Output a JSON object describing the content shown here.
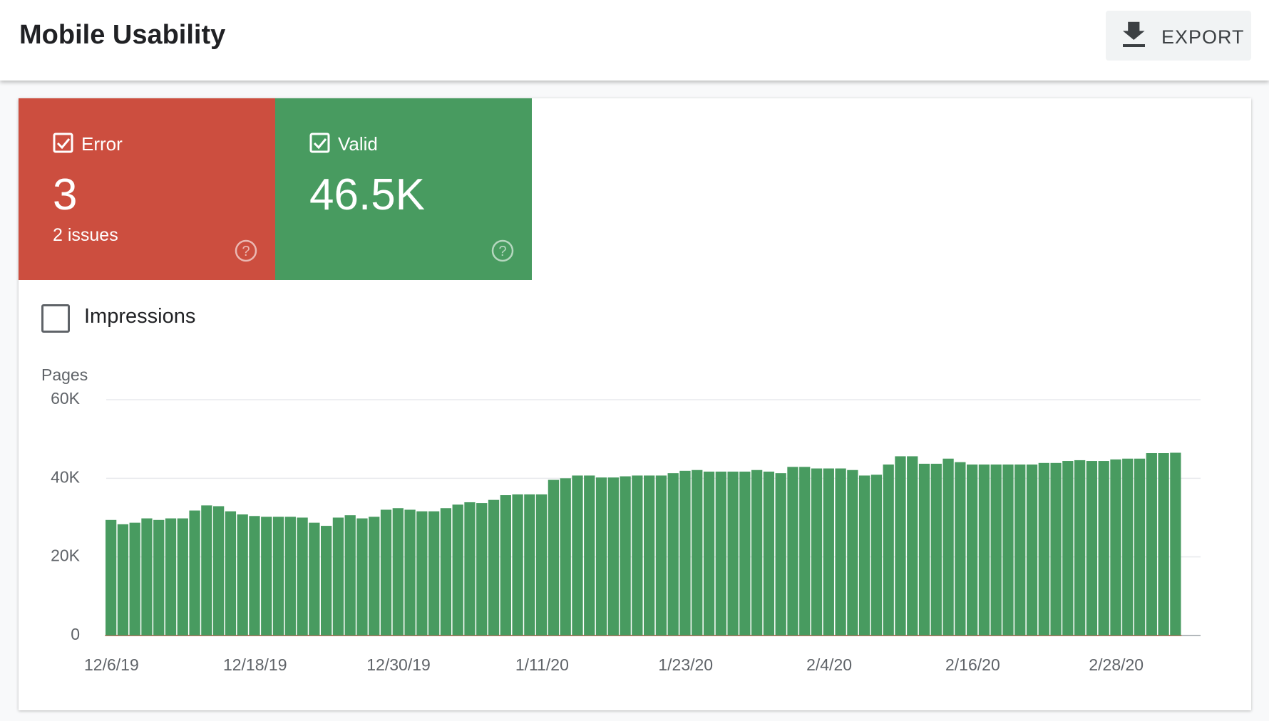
{
  "header": {
    "title": "Mobile Usability",
    "export_button": "EXPORT"
  },
  "tiles": [
    {
      "value": 3,
      "detail": "2 issues"
    },
    {
      "value": "46.5K"
    }
  ],
  "impressions_toggle": "Impressions",
  "chart_data": {
    "type": "bar",
    "stacked": true,
    "y_label": "Pages",
    "categories": [
      "12/6/19",
      null,
      null,
      null,
      null,
      null,
      null,
      null,
      null,
      null,
      null,
      null,
      "12/18/19",
      null,
      null,
      null,
      null,
      null,
      null,
      null,
      null,
      null,
      null,
      null,
      "12/30/19",
      null,
      null,
      null,
      null,
      null,
      null,
      null,
      null,
      null,
      null,
      null,
      "1/11/20",
      null,
      null,
      null,
      null,
      null,
      null,
      null,
      null,
      null,
      null,
      null,
      "1/23/20",
      null,
      null,
      null,
      null,
      null,
      null,
      null,
      null,
      null,
      null,
      null,
      "2/4/20",
      null,
      null,
      null,
      null,
      null,
      null,
      null,
      null,
      null,
      null,
      null,
      "2/16/20",
      null,
      null,
      null,
      null,
      null,
      null,
      null,
      null,
      null,
      null,
      null,
      "2/28/20",
      null,
      null,
      null,
      null,
      null
    ],
    "series": [
      {
        "name": "Error",
        "color": "#cc4e3f",
        "values": [
          3,
          3,
          3,
          3,
          3,
          3,
          3,
          3,
          3,
          3,
          3,
          3,
          3,
          3,
          3,
          3,
          3,
          3,
          3,
          3,
          3,
          3,
          3,
          3,
          3,
          3,
          3,
          3,
          3,
          3,
          3,
          3,
          3,
          3,
          3,
          3,
          3,
          3,
          3,
          3,
          3,
          3,
          3,
          3,
          3,
          3,
          3,
          3,
          3,
          3,
          3,
          3,
          3,
          3,
          3,
          3,
          3,
          3,
          3,
          3,
          3,
          3,
          3,
          3,
          3,
          3,
          3,
          3,
          3,
          3,
          3,
          3,
          3,
          3,
          3,
          3,
          3,
          3,
          3,
          3,
          3,
          3,
          3,
          3,
          3,
          3,
          3,
          3,
          3,
          3
        ]
      },
      {
        "name": "Valid",
        "color": "#489b60",
        "values": [
          29400,
          28300,
          28700,
          29800,
          29400,
          29800,
          29800,
          31800,
          33100,
          32900,
          31600,
          30800,
          30400,
          30200,
          30200,
          30200,
          30000,
          28700,
          27900,
          30000,
          30600,
          29800,
          30200,
          32000,
          32400,
          32000,
          31600,
          31600,
          32400,
          33300,
          33900,
          33700,
          34500,
          35700,
          35900,
          35900,
          35900,
          39600,
          40000,
          40700,
          40700,
          40200,
          40200,
          40500,
          40700,
          40700,
          40700,
          41300,
          41900,
          42100,
          41700,
          41700,
          41700,
          41700,
          42100,
          41700,
          41300,
          42900,
          42900,
          42500,
          42500,
          42500,
          42100,
          40700,
          40900,
          43500,
          45600,
          45600,
          43700,
          43700,
          45000,
          44100,
          43500,
          43500,
          43500,
          43500,
          43500,
          43500,
          43900,
          43900,
          44400,
          44600,
          44400,
          44400,
          44800,
          45000,
          45000,
          46400,
          46400,
          46500
        ]
      }
    ],
    "ylim": [
      0,
      60000
    ],
    "yticks": [
      0,
      {
        "value": 20000,
        "label": "20K"
      },
      {
        "value": 40000,
        "label": "40K"
      },
      {
        "value": 60000,
        "label": "60K"
      }
    ],
    "grid": true
  }
}
